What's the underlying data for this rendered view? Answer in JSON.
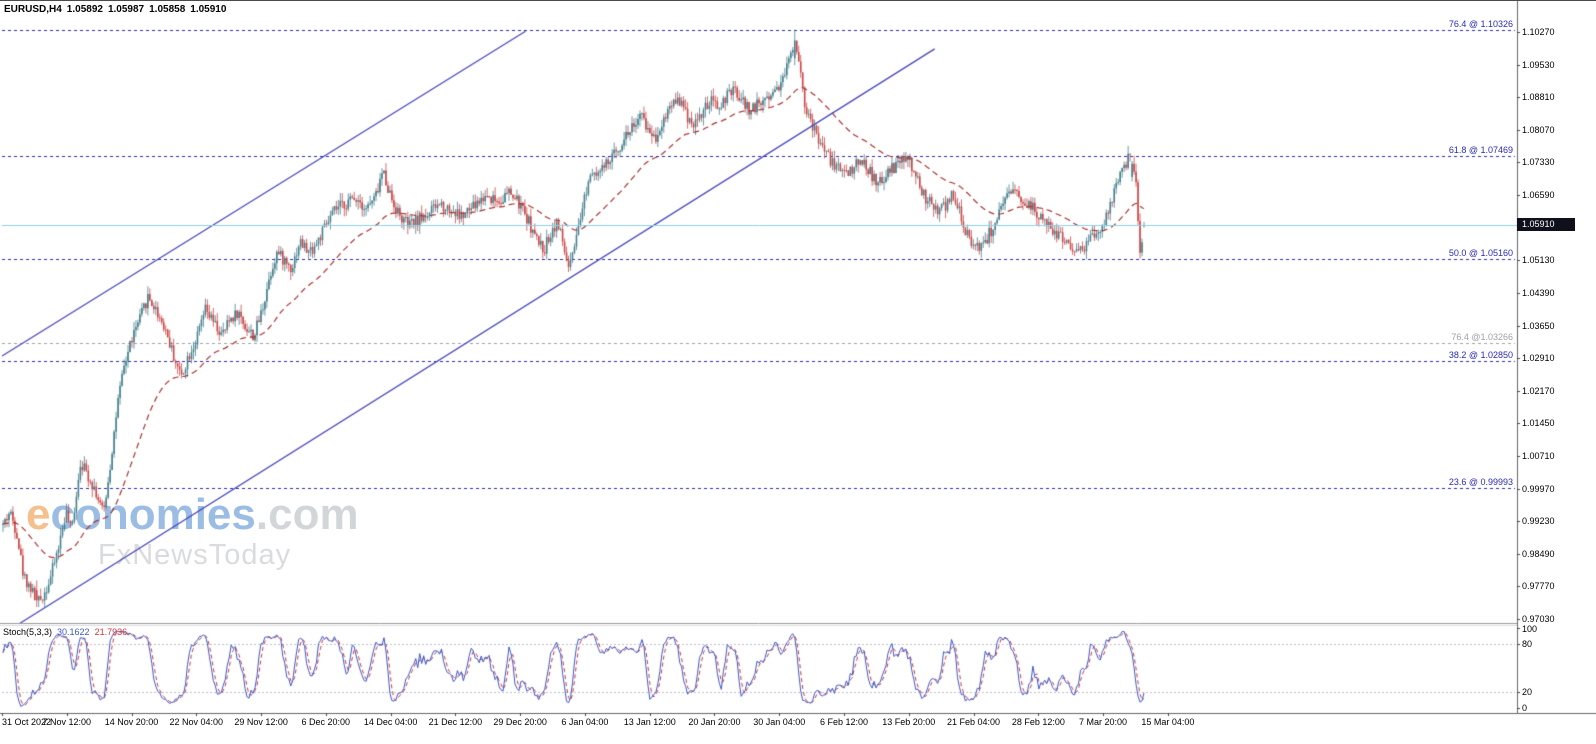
{
  "header": {
    "symbol_period": "EURUSD,H4",
    "open": "1.05892",
    "high": "1.05987",
    "low": "1.05858",
    "close": "1.05910"
  },
  "watermark": {
    "brand_initial": "e",
    "brand_rest": "conomies",
    "suffix": ".com",
    "tagline": "FxNewsToday",
    "accent_color": "#e8821f",
    "brand_color": "#3a7bc8",
    "suffix_color": "#a9aeb4",
    "tagline_color": "#b4b9bf"
  },
  "price_axis": {
    "labels": [
      "1.10270",
      "1.09530",
      "1.08810",
      "1.08070",
      "1.07330",
      "1.06590",
      "1.05130",
      "1.04390",
      "1.03650",
      "1.02910",
      "1.02170",
      "1.01450",
      "1.00710",
      "0.99970",
      "0.99230",
      "0.98490",
      "0.97770",
      "0.97030"
    ],
    "current_price_tag": "1.05910"
  },
  "time_axis": {
    "labels": [
      "31 Oct 2022",
      "7 Nov 12:00",
      "14 Nov 20:00",
      "22 Nov 04:00",
      "29 Nov 12:00",
      "6 Dec 20:00",
      "14 Dec 04:00",
      "21 Dec 12:00",
      "29 Dec 20:00",
      "6 Jan 04:00",
      "13 Jan 12:00",
      "20 Jan 20:00",
      "30 Jan 04:00",
      "6 Feb 12:00",
      "13 Feb 20:00",
      "21 Feb 04:00",
      "28 Feb 12:00",
      "7 Mar 20:00",
      "15 Mar 04:00"
    ],
    "t": [
      0,
      0.0567,
      0.1133,
      0.17,
      0.2267,
      0.2833,
      0.34,
      0.3967,
      0.4533,
      0.51,
      0.5667,
      0.6233,
      0.68,
      0.7367,
      0.7933,
      0.85,
      0.9067,
      0.9633,
      1.02
    ]
  },
  "stochastic": {
    "name": "Stoch(5,3,3)",
    "value_main": "30.1622",
    "value_signal": "21.7936",
    "axis_labels": [
      "100",
      "80",
      "20",
      "0"
    ],
    "levels_dashed": [
      80,
      20
    ],
    "range": [
      0,
      100
    ],
    "main_color": "#3a58c8",
    "signal_color": "#d03838",
    "level_color": "#c0c0cc"
  },
  "chart_data": {
    "type": "candlestick",
    "title": "EURUSD,H4",
    "xlabel": "",
    "ylabel": "",
    "x_range": [
      "31 Oct 2022",
      "15 Mar 04:00"
    ],
    "ylim": [
      0.9694,
      1.1097
    ],
    "grid": false,
    "candle_count": 576,
    "bull_color": "#46808e",
    "bear_color": "#cc4848",
    "ma": {
      "type": "ema",
      "period": 45,
      "style": "dashed",
      "color": "#aa3333"
    },
    "current_price": 1.0591,
    "current_price_line_color": "#8ed0e0",
    "channel_color": "#4444bb",
    "channel_lines": [
      {
        "t1": 0.005,
        "p1": 0.9676,
        "t2": 0.816,
        "p2": 1.0989
      },
      {
        "t1": 0.0,
        "p1": 1.0296,
        "t2": 0.458,
        "p2": 1.1029
      }
    ],
    "fib_levels": [
      {
        "label": "76.4 @ 1.10326",
        "price": 1.10326,
        "color": "#2a2ab5"
      },
      {
        "label": "61.8 @ 1.07469",
        "price": 1.07469,
        "color": "#2a2ab5"
      },
      {
        "label": "50.0 @ 1.05160",
        "price": 1.0516,
        "color": "#2a2ab5"
      },
      {
        "label": "76.4 @1.03266",
        "price": 1.03266,
        "color": "#a0a0a8"
      },
      {
        "label": "38.2 @ 1.02850",
        "price": 1.0285,
        "color": "#2a2ab5"
      },
      {
        "label": "23.6 @ 0.99993",
        "price": 0.99993,
        "color": "#2a2ab5"
      }
    ],
    "clamp": {
      "max_high": 1.10326,
      "min_low": 0.973
    },
    "key_candles": [
      {
        "t": 0.694,
        "ohlc": [
          1.0968,
          1.10326,
          1.0952,
          1.1008
        ]
      },
      {
        "t": 0.03,
        "ohlc": [
          0.9768,
          0.979,
          0.973,
          0.9745
        ]
      }
    ],
    "final_candles": [
      [
        1.07,
        1.0736,
        1.069,
        1.073
      ],
      [
        1.073,
        1.0748,
        1.0705,
        1.0712
      ],
      [
        1.0712,
        1.073,
        1.0678,
        1.0688
      ],
      [
        1.0688,
        1.0695,
        1.0592,
        1.0601
      ],
      [
        1.0601,
        1.0618,
        1.0516,
        1.0529
      ],
      [
        1.0529,
        1.0561,
        1.0521,
        1.0553
      ],
      [
        1.05892,
        1.05987,
        1.05858,
        1.0591
      ]
    ],
    "price_path": [
      [
        0.0,
        0.9915
      ],
      [
        0.006,
        0.9945
      ],
      [
        0.012,
        0.99
      ],
      [
        0.018,
        0.98
      ],
      [
        0.025,
        0.977
      ],
      [
        0.03,
        0.9738
      ],
      [
        0.036,
        0.976
      ],
      [
        0.042,
        0.98
      ],
      [
        0.05,
        0.988
      ],
      [
        0.055,
        0.9945
      ],
      [
        0.06,
        0.99
      ],
      [
        0.068,
        1.006
      ],
      [
        0.074,
        1.003
      ],
      [
        0.08,
        1.0
      ],
      [
        0.088,
        0.994
      ],
      [
        0.094,
        1.005
      ],
      [
        0.1,
        1.018
      ],
      [
        0.106,
        1.027
      ],
      [
        0.112,
        1.033
      ],
      [
        0.12,
        1.038
      ],
      [
        0.127,
        1.043
      ],
      [
        0.134,
        1.04
      ],
      [
        0.142,
        1.036
      ],
      [
        0.149,
        1.03
      ],
      [
        0.156,
        1.025
      ],
      [
        0.163,
        1.03
      ],
      [
        0.17,
        1.0335
      ],
      [
        0.177,
        1.04
      ],
      [
        0.185,
        1.037
      ],
      [
        0.192,
        1.034
      ],
      [
        0.199,
        1.038
      ],
      [
        0.206,
        1.0395
      ],
      [
        0.213,
        1.036
      ],
      [
        0.22,
        1.034
      ],
      [
        0.227,
        1.04
      ],
      [
        0.234,
        1.048
      ],
      [
        0.24,
        1.053
      ],
      [
        0.247,
        1.051
      ],
      [
        0.253,
        1.0495
      ],
      [
        0.26,
        1.0555
      ],
      [
        0.268,
        1.053
      ],
      [
        0.275,
        1.055
      ],
      [
        0.283,
        1.059
      ],
      [
        0.291,
        1.0625
      ],
      [
        0.3,
        1.064
      ],
      [
        0.31,
        1.0655
      ],
      [
        0.318,
        1.063
      ],
      [
        0.326,
        1.065
      ],
      [
        0.333,
        1.0715
      ],
      [
        0.34,
        1.0655
      ],
      [
        0.348,
        1.061
      ],
      [
        0.356,
        1.059
      ],
      [
        0.365,
        1.0605
      ],
      [
        0.374,
        1.062
      ],
      [
        0.383,
        1.064
      ],
      [
        0.393,
        1.0625
      ],
      [
        0.403,
        1.061
      ],
      [
        0.413,
        1.0635
      ],
      [
        0.424,
        1.066
      ],
      [
        0.434,
        1.0645
      ],
      [
        0.444,
        1.0665
      ],
      [
        0.452,
        1.064
      ],
      [
        0.46,
        1.0605
      ],
      [
        0.467,
        1.056
      ],
      [
        0.474,
        1.0535
      ],
      [
        0.48,
        1.0575
      ],
      [
        0.486,
        1.06
      ],
      [
        0.491,
        1.0545
      ],
      [
        0.496,
        1.049
      ],
      [
        0.503,
        1.056
      ],
      [
        0.51,
        1.066
      ],
      [
        0.516,
        1.072
      ],
      [
        0.523,
        1.071
      ],
      [
        0.53,
        1.073
      ],
      [
        0.538,
        1.076
      ],
      [
        0.546,
        1.0795
      ],
      [
        0.553,
        1.082
      ],
      [
        0.56,
        1.0835
      ],
      [
        0.566,
        1.0805
      ],
      [
        0.572,
        1.079
      ],
      [
        0.579,
        1.083
      ],
      [
        0.585,
        1.0865
      ],
      [
        0.592,
        1.088
      ],
      [
        0.599,
        1.084
      ],
      [
        0.606,
        1.082
      ],
      [
        0.613,
        1.0845
      ],
      [
        0.62,
        1.087
      ],
      [
        0.627,
        1.0855
      ],
      [
        0.634,
        1.088
      ],
      [
        0.641,
        1.0895
      ],
      [
        0.648,
        1.087
      ],
      [
        0.655,
        1.085
      ],
      [
        0.662,
        1.0865
      ],
      [
        0.669,
        1.088
      ],
      [
        0.676,
        1.0895
      ],
      [
        0.683,
        1.092
      ],
      [
        0.69,
        1.0975
      ],
      [
        0.694,
        1.101
      ],
      [
        0.698,
        1.096
      ],
      [
        0.703,
        1.086
      ],
      [
        0.708,
        1.082
      ],
      [
        0.714,
        1.079
      ],
      [
        0.72,
        1.076
      ],
      [
        0.726,
        1.0735
      ],
      [
        0.733,
        1.072
      ],
      [
        0.74,
        1.071
      ],
      [
        0.747,
        1.0725
      ],
      [
        0.753,
        1.074
      ],
      [
        0.76,
        1.071
      ],
      [
        0.766,
        1.068
      ],
      [
        0.773,
        1.07
      ],
      [
        0.78,
        1.072
      ],
      [
        0.787,
        1.0735
      ],
      [
        0.793,
        1.074
      ],
      [
        0.8,
        1.07
      ],
      [
        0.806,
        1.066
      ],
      [
        0.813,
        1.064
      ],
      [
        0.82,
        1.062
      ],
      [
        0.827,
        1.064
      ],
      [
        0.833,
        1.066
      ],
      [
        0.84,
        1.061
      ],
      [
        0.846,
        1.056
      ],
      [
        0.852,
        1.055
      ],
      [
        0.858,
        1.0545
      ],
      [
        0.864,
        1.057
      ],
      [
        0.87,
        1.06
      ],
      [
        0.876,
        1.063
      ],
      [
        0.882,
        1.066
      ],
      [
        0.888,
        1.0665
      ],
      [
        0.894,
        1.065
      ],
      [
        0.9,
        1.0635
      ],
      [
        0.906,
        1.062
      ],
      [
        0.912,
        1.06
      ],
      [
        0.918,
        1.058
      ],
      [
        0.924,
        1.057
      ],
      [
        0.93,
        1.056
      ],
      [
        0.936,
        1.0545
      ],
      [
        0.942,
        1.053
      ],
      [
        0.948,
        1.0545
      ],
      [
        0.954,
        1.056
      ],
      [
        0.96,
        1.0575
      ],
      [
        0.966,
        1.06
      ],
      [
        0.971,
        1.064
      ],
      [
        0.976,
        1.068
      ],
      [
        0.981,
        1.0715
      ],
      [
        0.986,
        1.074
      ],
      [
        0.99,
        1.0745
      ],
      [
        0.9935,
        1.06
      ],
      [
        0.996,
        1.052
      ],
      [
        1.0,
        1.0591
      ]
    ]
  }
}
